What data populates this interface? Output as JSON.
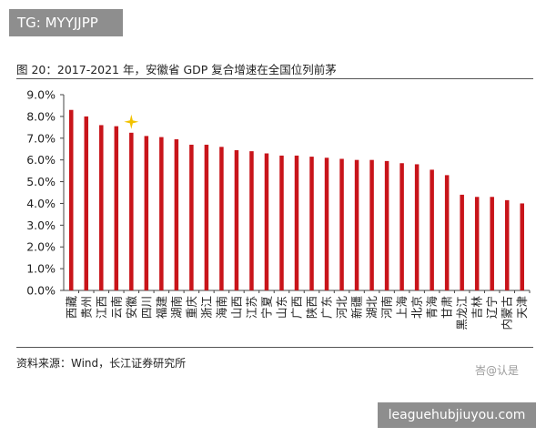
{
  "watermark_top": "TG: MYYJJPP",
  "watermark_bottom": "leaguehubjiuyou.com",
  "attribution": "峇@认是",
  "source_note": "资料来源：Wind，长江证券研究所",
  "colors": {
    "bar": "#c8141a",
    "axis": "#444444",
    "star": "#f2c200"
  },
  "chart_data": {
    "type": "bar",
    "title": "图 20：2017-2021 年，安徽省 GDP 复合增速在全国位列前茅",
    "xlabel": "",
    "ylabel": "",
    "ylim": [
      0,
      9
    ],
    "yticks": [
      "0.0%",
      "1.0%",
      "2.0%",
      "3.0%",
      "4.0%",
      "5.0%",
      "6.0%",
      "7.0%",
      "8.0%",
      "9.0%"
    ],
    "highlight": "安徽",
    "categories": [
      "西藏",
      "贵州",
      "江西",
      "云南",
      "安徽",
      "四川",
      "福建",
      "湖南",
      "重庆",
      "浙江",
      "海南",
      "山西",
      "江苏",
      "宁夏",
      "山东",
      "广西",
      "陕西",
      "广东",
      "河北",
      "新疆",
      "湖北",
      "河南",
      "上海",
      "北京",
      "青海",
      "甘肃",
      "黑龙江",
      "吉林",
      "辽宁",
      "内蒙古",
      "天津"
    ],
    "values": [
      8.3,
      8.0,
      7.6,
      7.55,
      7.25,
      7.1,
      7.05,
      6.95,
      6.7,
      6.7,
      6.6,
      6.45,
      6.4,
      6.3,
      6.2,
      6.2,
      6.15,
      6.1,
      6.05,
      6.0,
      6.0,
      5.95,
      5.85,
      5.8,
      5.55,
      5.3,
      4.4,
      4.3,
      4.3,
      4.15,
      4.0
    ]
  }
}
